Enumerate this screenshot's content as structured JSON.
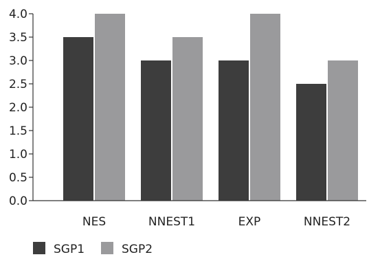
{
  "chart_data": {
    "type": "bar",
    "categories": [
      "NES",
      "NNEST1",
      "EXP",
      "NNEST2"
    ],
    "series": [
      {
        "name": "SGP1",
        "values": [
          3.5,
          3.0,
          3.0,
          2.5
        ],
        "color": "#3d3d3d"
      },
      {
        "name": "SGP2",
        "values": [
          4.0,
          3.5,
          4.0,
          3.0
        ],
        "color": "#9a9a9c"
      }
    ],
    "ylim": [
      0,
      4.0
    ],
    "yticks": [
      "0.0",
      "0.5",
      "1.0",
      "1.5",
      "2.0",
      "2.5",
      "3.0",
      "3.5",
      "4.0"
    ],
    "grid": false,
    "legend_position": "bottom-left"
  }
}
